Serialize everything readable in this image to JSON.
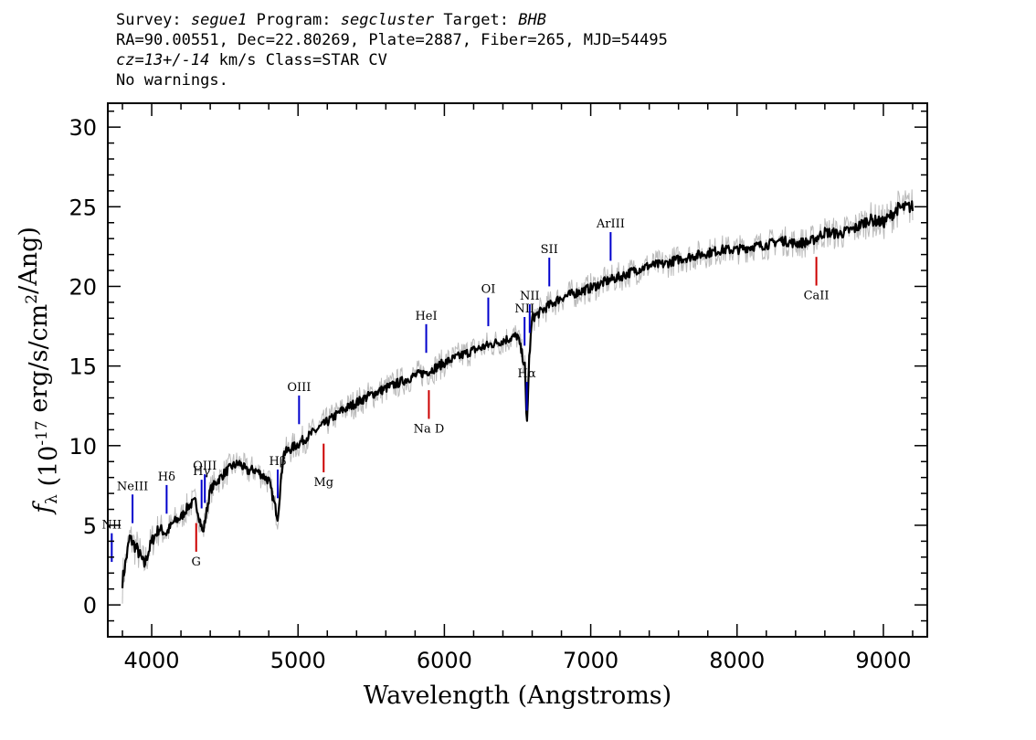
{
  "header": {
    "survey_label": "Survey:",
    "survey_value": "segue1",
    "program_label": "Program:",
    "program_value": "segcluster",
    "target_label": "Target:",
    "target_value": "BHB",
    "line2": "RA=90.00551, Dec=22.80269, Plate=2887, Fiber=265, MJD=54495",
    "cz_value": "cz=13+/-14",
    "cz_rest": " km/s Class=STAR CV",
    "line4": "No warnings."
  },
  "chart_data": {
    "type": "line",
    "title": "",
    "xlabel": "Wavelength (Angstroms)",
    "ylabel": "f_λ (10^-17 erg/s/cm^2/Ang)",
    "xlim": [
      3700,
      9300
    ],
    "ylim": [
      -2,
      31.5
    ],
    "xticks": [
      4000,
      5000,
      6000,
      7000,
      8000,
      9000
    ],
    "yticks": [
      0,
      5,
      10,
      15,
      20,
      25,
      30
    ],
    "series": [
      {
        "style": "flux",
        "color": "#000000",
        "noise_color": "#bbbbbb",
        "x": [
          3800,
          3850,
          3900,
          3950,
          4000,
          4050,
          4100,
          4150,
          4200,
          4250,
          4300,
          4350,
          4400,
          4450,
          4500,
          4550,
          4600,
          4650,
          4700,
          4750,
          4800,
          4861,
          4900,
          4950,
          5000,
          5100,
          5200,
          5300,
          5400,
          5500,
          5600,
          5700,
          5800,
          5900,
          6000,
          6100,
          6200,
          6300,
          6400,
          6500,
          6550,
          6563,
          6580,
          6600,
          6700,
          6800,
          6900,
          7000,
          7100,
          7200,
          7300,
          7400,
          7500,
          7600,
          7700,
          7800,
          7900,
          8000,
          8100,
          8200,
          8300,
          8400,
          8500,
          8600,
          8700,
          8800,
          8900,
          9000,
          9100,
          9200
        ],
        "y": [
          1.5,
          4.2,
          3.5,
          2.5,
          4.0,
          4.8,
          4.5,
          5.2,
          5.5,
          6.2,
          6.5,
          4.5,
          7.2,
          7.8,
          8.3,
          8.7,
          8.9,
          8.4,
          8.5,
          8.2,
          7.8,
          5.5,
          9.5,
          9.8,
          10.1,
          10.8,
          11.5,
          12.2,
          12.7,
          13.2,
          13.6,
          14.0,
          14.4,
          14.7,
          15.2,
          15.6,
          16.0,
          16.3,
          16.6,
          16.9,
          15.0,
          11.0,
          15.5,
          18.0,
          18.7,
          19.3,
          19.6,
          19.9,
          20.3,
          20.6,
          21.0,
          21.3,
          21.4,
          21.7,
          21.9,
          22.1,
          22.3,
          22.3,
          22.5,
          22.6,
          22.9,
          22.7,
          22.8,
          23.4,
          23.3,
          23.6,
          24.2,
          24.0,
          24.9,
          25.0
        ]
      }
    ],
    "emission_lines": [
      {
        "label": "NII",
        "wave": 3727,
        "color": "#0000cc"
      },
      {
        "label": "NeIII",
        "wave": 3869,
        "color": "#0000cc"
      },
      {
        "label": "Hδ",
        "wave": 4102,
        "color": "#0000cc"
      },
      {
        "label": "Hγ",
        "wave": 4341,
        "color": "#0000cc"
      },
      {
        "label": "OIII",
        "wave": 4363,
        "color": "#0000cc"
      },
      {
        "label": "Hβ",
        "wave": 4861,
        "color": "#0000cc"
      },
      {
        "label": "OIII",
        "wave": 5007,
        "color": "#0000cc"
      },
      {
        "label": "HeI",
        "wave": 5876,
        "color": "#0000cc"
      },
      {
        "label": "OI",
        "wave": 6300,
        "color": "#0000cc"
      },
      {
        "label": "NII",
        "wave": 6548,
        "color": "#0000cc"
      },
      {
        "label": "Hα",
        "wave": 6563,
        "color": "#0000cc"
      },
      {
        "label": "NII",
        "wave": 6583,
        "color": "#0000cc"
      },
      {
        "label": "SII",
        "wave": 6717,
        "color": "#0000cc"
      },
      {
        "label": "ArIII",
        "wave": 7136,
        "color": "#0000cc"
      }
    ],
    "absorption_lines": [
      {
        "label": "G",
        "wave": 4304,
        "color": "#cc0000"
      },
      {
        "label": "Mg",
        "wave": 5175,
        "color": "#cc0000"
      },
      {
        "label": "Na D",
        "wave": 5894,
        "color": "#cc0000"
      },
      {
        "label": "CaII",
        "wave": 8542,
        "color": "#cc0000"
      }
    ]
  }
}
